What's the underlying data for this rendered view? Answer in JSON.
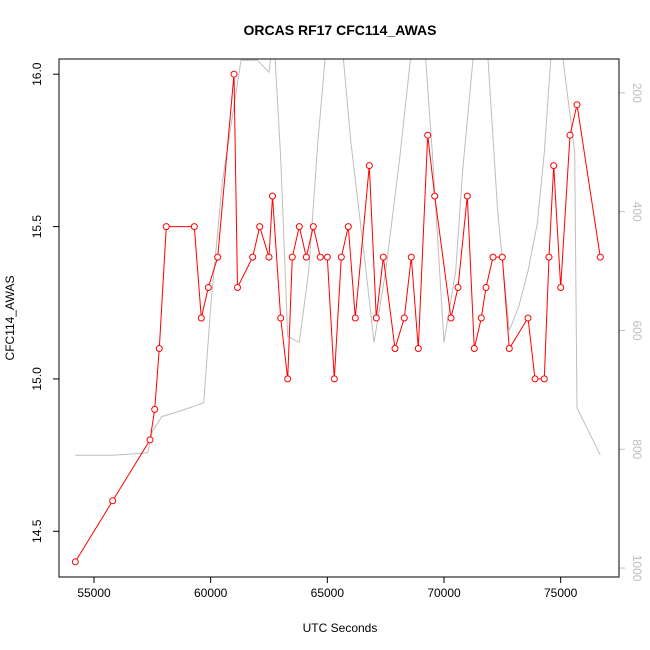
{
  "chart_data": {
    "type": "line",
    "title": "ORCAS RF17 CFC114_AWAS",
    "xlabel": "UTC Seconds",
    "ylabel": "CFC114_AWAS",
    "xlim": [
      53500,
      77500
    ],
    "ylim": [
      14.35,
      16.05
    ],
    "x_ticks": [
      55000,
      60000,
      65000,
      70000,
      75000
    ],
    "y_ticks": [
      14.5,
      15.0,
      15.5,
      16.0
    ],
    "y2_ticks": [
      200,
      400,
      600,
      800,
      1000
    ],
    "y2_reversed": true,
    "y2_lim": [
      1015,
      143
    ],
    "colors": {
      "primary": "#ff0000",
      "secondary": "#bebebe",
      "axis": "#000000"
    },
    "series": [
      {
        "axis": "left",
        "marker": "open-circle",
        "points": [
          [
            54200,
            14.4
          ],
          [
            55800,
            14.6
          ],
          [
            57400,
            14.8
          ],
          [
            57600,
            14.9
          ],
          [
            57800,
            15.1
          ],
          [
            58100,
            15.5
          ],
          [
            59300,
            15.5
          ],
          [
            59600,
            15.2
          ],
          [
            59900,
            15.3
          ],
          [
            60300,
            15.4
          ],
          [
            61000,
            16.0
          ],
          [
            61150,
            15.3
          ],
          [
            61800,
            15.4
          ],
          [
            62100,
            15.5
          ],
          [
            62500,
            15.4
          ],
          [
            62650,
            15.6
          ],
          [
            63000,
            15.2
          ],
          [
            63300,
            15.0
          ],
          [
            63500,
            15.4
          ],
          [
            63800,
            15.5
          ],
          [
            64100,
            15.4
          ],
          [
            64400,
            15.5
          ],
          [
            64700,
            15.4
          ],
          [
            65000,
            15.4
          ],
          [
            65300,
            15.0
          ],
          [
            65600,
            15.4
          ],
          [
            65900,
            15.5
          ],
          [
            66200,
            15.2
          ],
          [
            66800,
            15.7
          ],
          [
            67100,
            15.2
          ],
          [
            67400,
            15.4
          ],
          [
            67900,
            15.1
          ],
          [
            68300,
            15.2
          ],
          [
            68600,
            15.4
          ],
          [
            68900,
            15.1
          ],
          [
            69300,
            15.8
          ],
          [
            69600,
            15.6
          ],
          [
            70300,
            15.2
          ],
          [
            70600,
            15.3
          ],
          [
            71000,
            15.6
          ],
          [
            71300,
            15.1
          ],
          [
            71600,
            15.2
          ],
          [
            71800,
            15.3
          ],
          [
            72100,
            15.4
          ],
          [
            72500,
            15.4
          ],
          [
            72800,
            15.1
          ],
          [
            73600,
            15.2
          ],
          [
            73900,
            15.0
          ],
          [
            74300,
            15.0
          ],
          [
            74500,
            15.4
          ],
          [
            74700,
            15.7
          ],
          [
            75000,
            15.3
          ],
          [
            75400,
            15.8
          ],
          [
            75700,
            15.9
          ],
          [
            76700,
            15.4
          ]
        ]
      },
      {
        "axis": "right",
        "marker": "none",
        "points": [
          [
            54200,
            810
          ],
          [
            55800,
            810
          ],
          [
            57000,
            807
          ],
          [
            57300,
            806
          ],
          [
            57500,
            770
          ],
          [
            57900,
            745
          ],
          [
            58500,
            738
          ],
          [
            59700,
            722
          ],
          [
            60000,
            560
          ],
          [
            60500,
            350
          ],
          [
            61300,
            145
          ],
          [
            62000,
            145
          ],
          [
            62500,
            165
          ],
          [
            62700,
            100
          ],
          [
            63000,
            310
          ],
          [
            63300,
            610
          ],
          [
            63800,
            620
          ],
          [
            64200,
            500
          ],
          [
            64600,
            280
          ],
          [
            65000,
            100
          ],
          [
            65500,
            60
          ],
          [
            66000,
            280
          ],
          [
            66600,
            480
          ],
          [
            67000,
            620
          ],
          [
            67500,
            500
          ],
          [
            68100,
            310
          ],
          [
            68600,
            130
          ],
          [
            69100,
            80
          ],
          [
            69500,
            300
          ],
          [
            70000,
            620
          ],
          [
            70500,
            500
          ],
          [
            70800,
            330
          ],
          [
            71300,
            120
          ],
          [
            71800,
            90
          ],
          [
            72300,
            400
          ],
          [
            72800,
            600
          ],
          [
            73200,
            560
          ],
          [
            73600,
            500
          ],
          [
            74000,
            420
          ],
          [
            74300,
            300
          ],
          [
            74600,
            130
          ],
          [
            74900,
            80
          ],
          [
            75600,
            300
          ],
          [
            75700,
            730
          ],
          [
            76700,
            810
          ]
        ]
      }
    ]
  }
}
